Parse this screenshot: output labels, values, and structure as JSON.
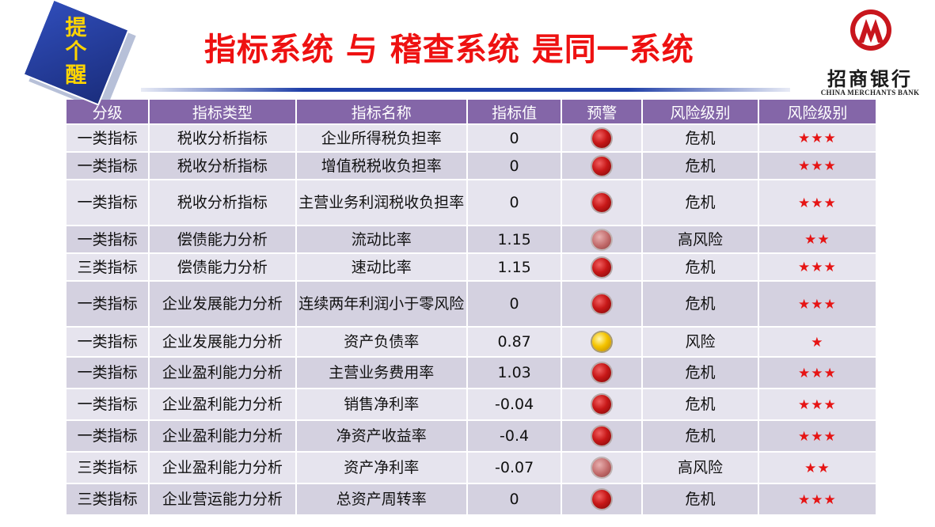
{
  "badge": {
    "text": "提个醒"
  },
  "title": "指标系统 与 稽查系统 是同一系统",
  "logo": {
    "name": "招商银行",
    "name_en": "CHINA MERCHANTS BANK"
  },
  "colors": {
    "title": "#ee1111",
    "header_bg": "#8466a8",
    "row_bg": "#e6e4ee",
    "row_alt_bg": "#d4d1e0",
    "star": "#e61414",
    "badge_bg": "#2a46ad",
    "badge_text": "#ffd400"
  },
  "table": {
    "headers": [
      "分级",
      "指标类型",
      "指标名称",
      "指标值",
      "预警",
      "风险级别",
      "风险级别"
    ],
    "rows": [
      {
        "level": "一类指标",
        "type": "税收分析指标",
        "name": "企业所得税负担率",
        "value": "0",
        "light": "red",
        "risk": "危机",
        "stars": "★★★"
      },
      {
        "level": "一类指标",
        "type": "税收分析指标",
        "name": "增值税税收负担率",
        "value": "0",
        "light": "red",
        "risk": "危机",
        "stars": "★★★"
      },
      {
        "level": "一类指标",
        "type": "税收分析指标",
        "name": "主营业务利润税收负担率",
        "value": "0",
        "light": "red",
        "risk": "危机",
        "stars": "★★★"
      },
      {
        "level": "一类指标",
        "type": "偿债能力分析",
        "name": "流动比率",
        "value": "1.15",
        "light": "pink",
        "risk": "高风险",
        "stars": "★★"
      },
      {
        "level": "三类指标",
        "type": "偿债能力分析",
        "name": "速动比率",
        "value": "1.15",
        "light": "red",
        "risk": "危机",
        "stars": "★★★"
      },
      {
        "level": "一类指标",
        "type": "企业发展能力分析",
        "name": "连续两年利润小于零风险",
        "value": "0",
        "light": "red",
        "risk": "危机",
        "stars": "★★★"
      },
      {
        "level": "一类指标",
        "type": "企业发展能力分析",
        "name": "资产负债率",
        "value": "0.87",
        "light": "yellow",
        "risk": "风险",
        "stars": "★"
      },
      {
        "level": "一类指标",
        "type": "企业盈利能力分析",
        "name": "主营业务费用率",
        "value": "1.03",
        "light": "red",
        "risk": "危机",
        "stars": "★★★"
      },
      {
        "level": "一类指标",
        "type": "企业盈利能力分析",
        "name": "销售净利率",
        "value": "-0.04",
        "light": "red",
        "risk": "危机",
        "stars": "★★★"
      },
      {
        "level": "一类指标",
        "type": "企业盈利能力分析",
        "name": "净资产收益率",
        "value": "-0.4",
        "light": "red",
        "risk": "危机",
        "stars": "★★★"
      },
      {
        "level": "三类指标",
        "type": "企业盈利能力分析",
        "name": "资产净利率",
        "value": "-0.07",
        "light": "pink",
        "risk": "高风险",
        "stars": "★★"
      },
      {
        "level": "三类指标",
        "type": "企业营运能力分析",
        "name": "总资产周转率",
        "value": "0",
        "light": "red",
        "risk": "危机",
        "stars": "★★★"
      }
    ]
  }
}
